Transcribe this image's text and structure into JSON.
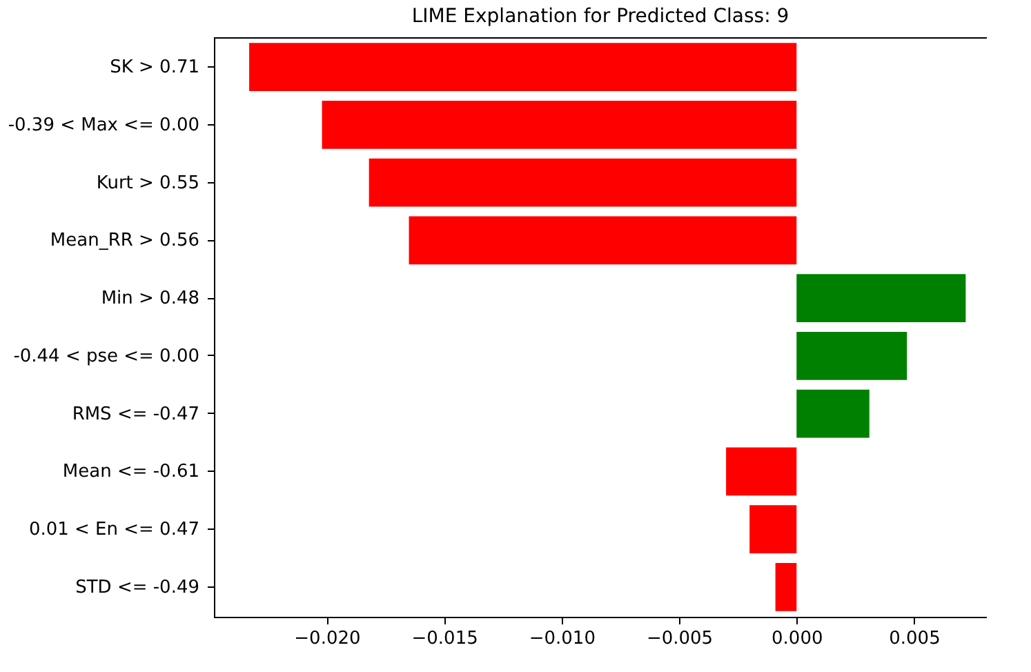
{
  "chart_data": {
    "type": "bar",
    "orientation": "horizontal",
    "title": "LIME Explanation for Predicted Class: 9",
    "categories": [
      "SK > 0.71",
      "-0.39 < Max <= 0.00",
      "Kurt > 0.55",
      "Mean_RR > 0.56",
      "Min > 0.48",
      "-0.44 < pse <= 0.00",
      "RMS <= -0.47",
      "Mean <= -0.61",
      "0.01 < En <= 0.47",
      "STD <= -0.49"
    ],
    "values": [
      -0.0233,
      -0.0202,
      -0.0182,
      -0.0165,
      0.0072,
      0.0047,
      0.0031,
      -0.003,
      -0.002,
      -0.0009
    ],
    "colors": [
      "#ff0000",
      "#ff0000",
      "#ff0000",
      "#ff0000",
      "#008000",
      "#008000",
      "#008000",
      "#ff0000",
      "#ff0000",
      "#ff0000"
    ],
    "xlim": [
      -0.0248,
      0.0081
    ],
    "xticks": [
      {
        "value": -0.02,
        "label": "−0.020"
      },
      {
        "value": -0.015,
        "label": "−0.015"
      },
      {
        "value": -0.01,
        "label": "−0.010"
      },
      {
        "value": -0.005,
        "label": "−0.005"
      },
      {
        "value": 0,
        "label": "0.000"
      },
      {
        "value": 0.005,
        "label": "0.005"
      }
    ],
    "grid": false
  }
}
